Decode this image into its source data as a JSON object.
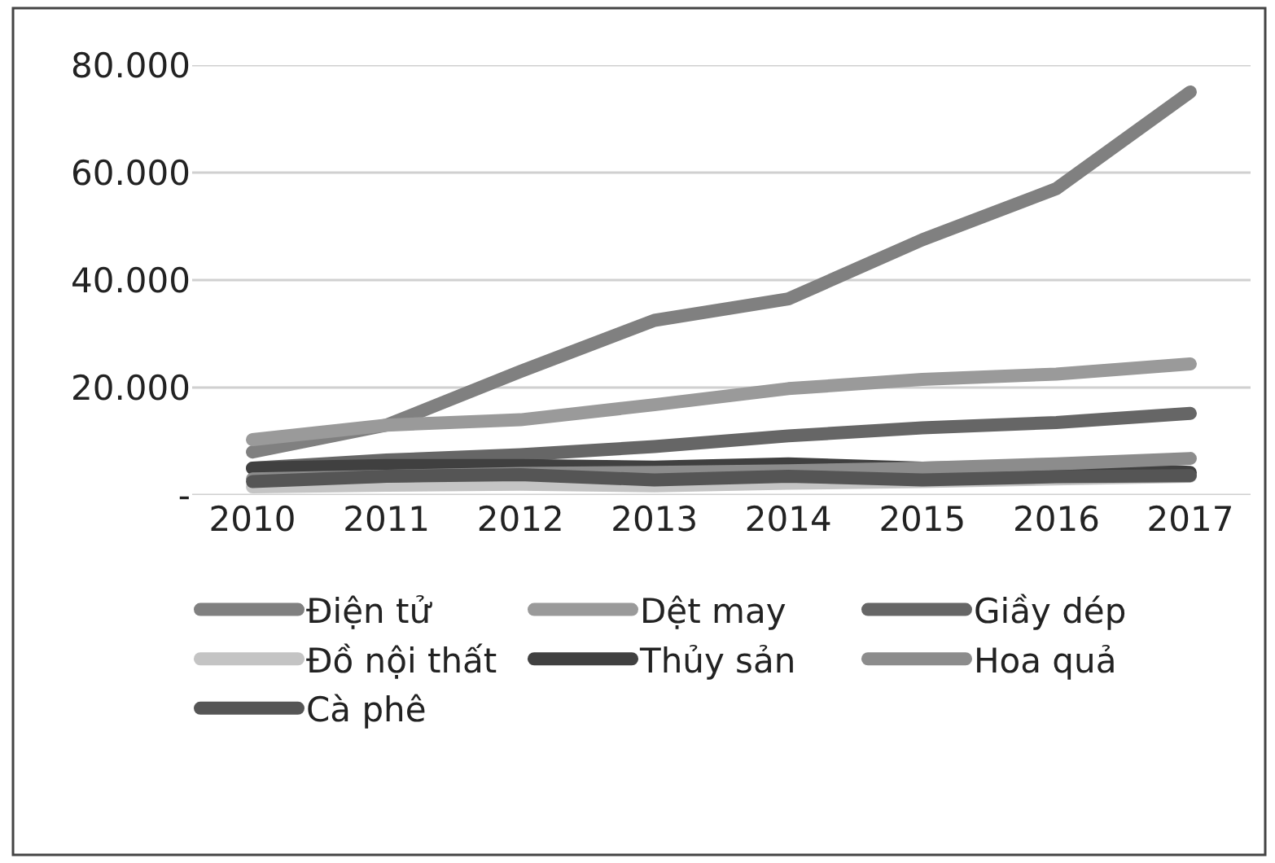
{
  "chart_data": {
    "type": "line",
    "categories": [
      "2010",
      "2011",
      "2012",
      "2013",
      "2014",
      "2015",
      "2016",
      "2017"
    ],
    "series": [
      {
        "name": "Điện tử",
        "color": "#808080",
        "values": [
          8000,
          13000,
          23000,
          32500,
          36500,
          47500,
          57000,
          75000
        ]
      },
      {
        "name": "Dệt may",
        "color": "#9a9a9a",
        "values": [
          10300,
          13000,
          14000,
          16800,
          19800,
          21500,
          22500,
          24400
        ]
      },
      {
        "name": "Giầy dép",
        "color": "#666666",
        "values": [
          5000,
          6500,
          7500,
          9000,
          11000,
          12500,
          13500,
          15200
        ]
      },
      {
        "name": "Đồ nội thất",
        "color": "#c4c4c4",
        "values": [
          1500,
          1800,
          2000,
          1700,
          2200,
          2500,
          3000,
          3500
        ]
      },
      {
        "name": "Thủy sản",
        "color": "#404040",
        "values": [
          5000,
          5500,
          5500,
          5200,
          5800,
          5000,
          5300,
          4200
        ]
      },
      {
        "name": "Hoa quả",
        "color": "#8c8c8c",
        "values": [
          3000,
          3500,
          4000,
          4200,
          4500,
          5000,
          5800,
          6800
        ]
      },
      {
        "name": "Cà phê",
        "color": "#555555",
        "values": [
          2500,
          3500,
          3800,
          2800,
          3500,
          2800,
          3400,
          3600
        ]
      }
    ],
    "ylim": [
      0,
      80000
    ],
    "yticks": [
      {
        "value": 0,
        "label": "-"
      },
      {
        "value": 20000,
        "label": "20.000"
      },
      {
        "value": 40000,
        "label": "40.000"
      },
      {
        "value": 60000,
        "label": "60.000"
      },
      {
        "value": 80000,
        "label": "80.000"
      }
    ],
    "grid": "y",
    "legend": "bottom",
    "marker": "none",
    "line_style": "solid"
  }
}
